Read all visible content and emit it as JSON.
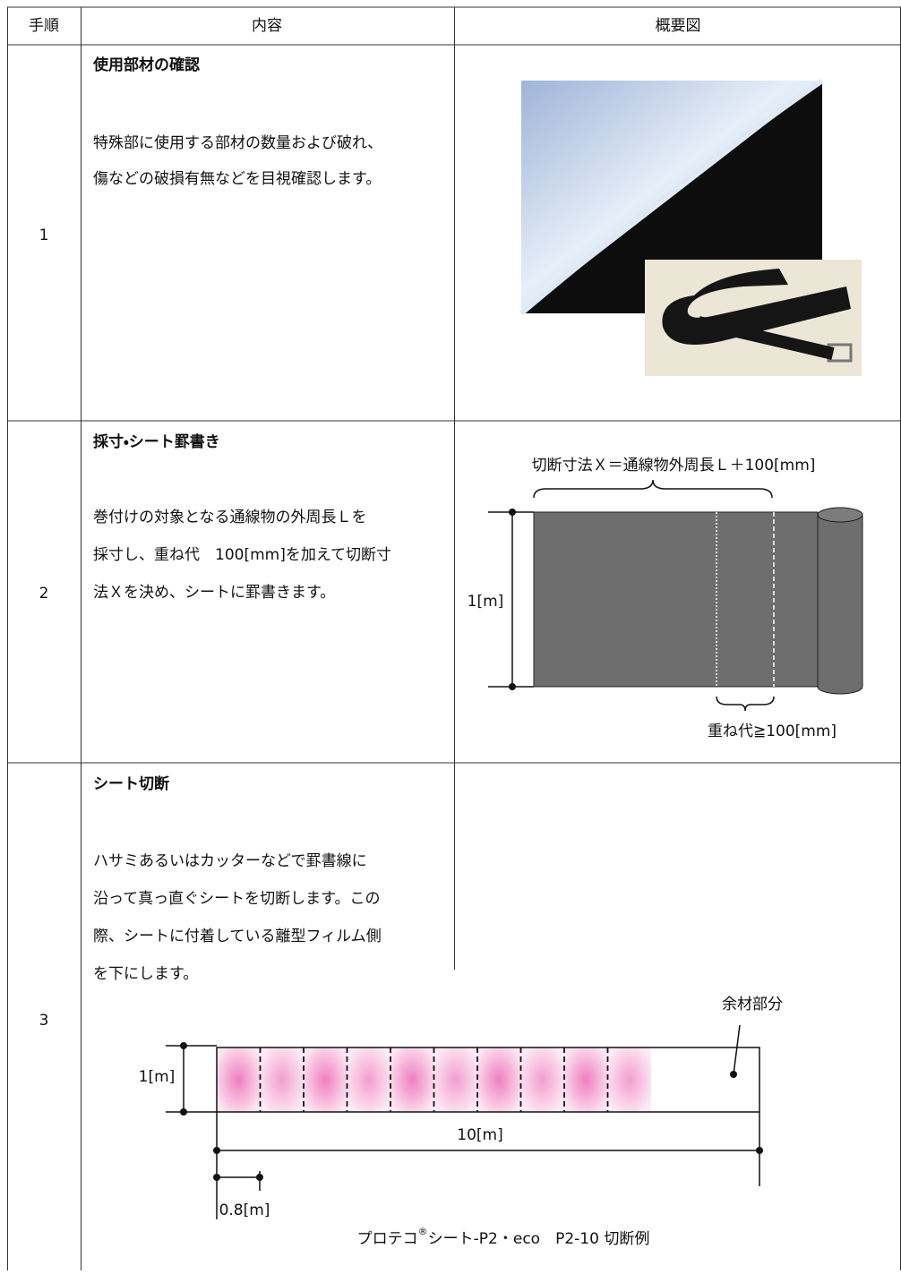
{
  "table": {
    "headers": [
      "手順",
      "内容",
      "概要図"
    ],
    "rows": [
      {
        "step": "1",
        "title": "使用部材の確認",
        "body": [
          "特殊部に使用する部材の数量および破れ、",
          "傷などの破損有無などを目視確認します。"
        ]
      },
      {
        "step": "2",
        "title": "採寸・シート罫書き",
        "body": [
          "巻付けの対象となる通線物の外周長Ｌを",
          "採寸し、重ね代　100[mm]を加えて切断寸",
          "法Ｘを決め、シートに罫書きます。"
        ]
      },
      {
        "step": "3",
        "title": "シート切断",
        "body": [
          "ハサミあるいはカッターなどで罫書線に",
          "沿って真っ直ぐシートを切断します。この",
          "際、シートに付着している離型フィルム側",
          "を下にします。"
        ]
      }
    ]
  },
  "figures": {
    "marking": {
      "cut_label": "切断寸法Ｘ＝通線物外周長Ｌ＋100[mm]",
      "height_label": "1[m]",
      "overlap_label": "重ね代≧100[mm]"
    },
    "cutting": {
      "remnant_label": "余材部分",
      "height_label": "1[m]",
      "length_label": "10[m]",
      "piece_label": "0.8[m]",
      "caption": {
        "product": "プロテコ",
        "mark": "®",
        "rest": "シート-P2・eco　P2-10 切断例"
      }
    }
  }
}
